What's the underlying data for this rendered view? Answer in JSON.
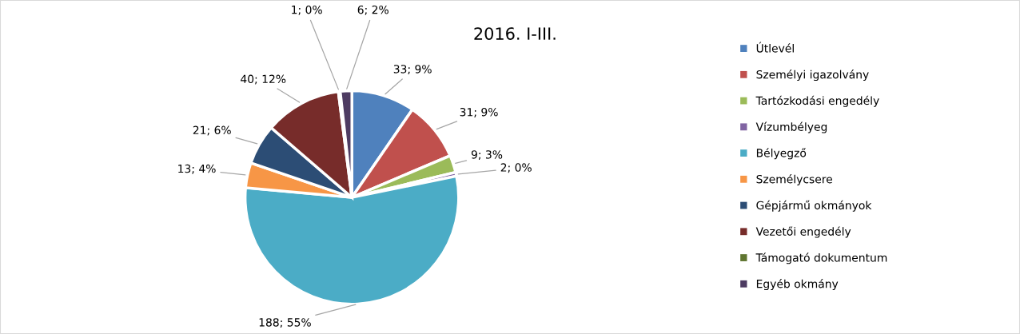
{
  "chart_data": {
    "type": "pie",
    "title": "2016. I-III.",
    "categories": [
      "Útlevél",
      "Személyi igazolvány",
      "Tartózkodási engedély",
      "Vízumbélyeg",
      "Bélyegző",
      "Személycsere",
      "Gépjármű okmányok",
      "Vezetői engedély",
      "Támogató dokumentum",
      "Egyéb okmány"
    ],
    "values": [
      33,
      31,
      9,
      2,
      188,
      13,
      21,
      40,
      1,
      6
    ],
    "value_labels": [
      "33; 9%",
      "31; 9%",
      "9; 3%",
      "2; 0%",
      "188; 55%",
      "13; 4%",
      "21; 6%",
      "40; 12%",
      "1; 0%",
      "6; 2%"
    ],
    "colors": [
      "#4f81bd",
      "#c0504d",
      "#9bbb59",
      "#8064a2",
      "#4bacc6",
      "#f79646",
      "#2c4d75",
      "#772c2a",
      "#5f7530",
      "#4d3b62"
    ],
    "legend": "right"
  }
}
